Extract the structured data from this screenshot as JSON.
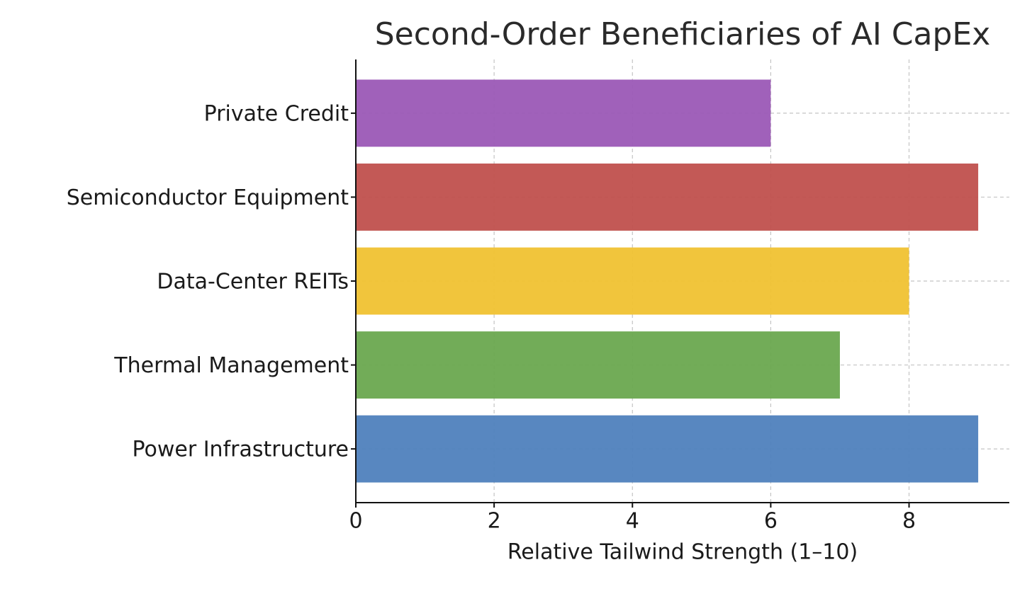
{
  "chart_data": {
    "type": "barh",
    "title": "Second-Order Beneficiaries of AI CapEx",
    "xlabel": "Relative Tailwind Strength (1–10)",
    "categories": [
      "Power Infrastructure",
      "Thermal Management",
      "Data-Center REITs",
      "Semiconductor Equipment",
      "Private Credit"
    ],
    "values": [
      9,
      7,
      8,
      9,
      6
    ],
    "colors": [
      "#4f81bd",
      "#6aa84f",
      "#f0c232",
      "#c0504d",
      "#9b59b6"
    ],
    "xlim": [
      0,
      9.45
    ],
    "xticks": [
      0,
      2,
      4,
      6,
      8
    ],
    "grid": true
  }
}
